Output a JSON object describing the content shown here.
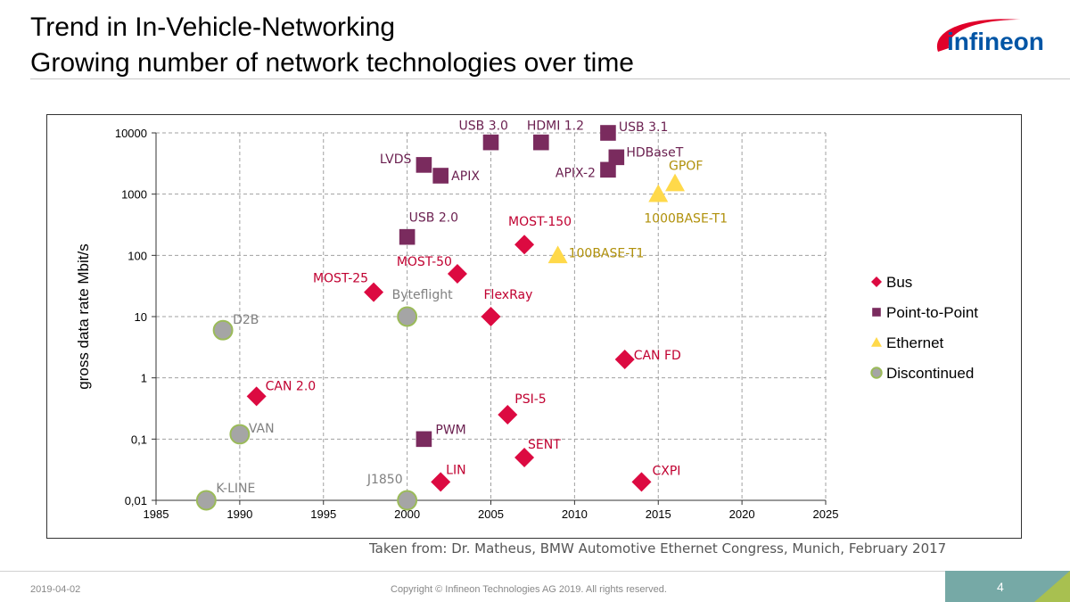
{
  "header": {
    "title_line1": "Trend in In-Vehicle-Networking",
    "title_line2": "Growing number of network technologies over time",
    "logo_text": "infineon"
  },
  "colors": {
    "bus": "#dc0a41",
    "point_to_point": "#7a2b5e",
    "ethernet": "#ffd94a",
    "discontinued": "#a5a5a5",
    "discontinued_edge": "#9bbb59",
    "bus_label": "#c00030",
    "ptp_label": "#6a1f4f",
    "ethernet_label": "#b0900a",
    "discontinued_label": "#808080",
    "footer_teal": "#76a9a6",
    "footer_green": "#a8c050",
    "logo_red": "#e0002a",
    "logo_blue": "#0055a5"
  },
  "chart_data": {
    "type": "scatter",
    "xlim": [
      1985,
      2025
    ],
    "x_ticks": [
      1985,
      1990,
      1995,
      2000,
      2005,
      2010,
      2015,
      2020,
      2025
    ],
    "y_scale": "log",
    "ylim": [
      0.01,
      10000
    ],
    "y_ticks": [
      0.01,
      0.1,
      1,
      10,
      100,
      1000,
      10000
    ],
    "y_tick_labels": [
      "0,01",
      "0,1",
      "1",
      "10",
      "100",
      "1000",
      "10000"
    ],
    "ylabel": "gross data rate Mbit/s",
    "grid": true,
    "legend_position": "right",
    "series": [
      {
        "name": "Bus",
        "marker": "diamond",
        "points": [
          {
            "label": "CAN 2.0",
            "x": 1991,
            "y": 0.5
          },
          {
            "label": "MOST-25",
            "x": 1998,
            "y": 25
          },
          {
            "label": "LIN",
            "x": 2002,
            "y": 0.02
          },
          {
            "label": "MOST-50",
            "x": 2003,
            "y": 50
          },
          {
            "label": "FlexRay",
            "x": 2005,
            "y": 10
          },
          {
            "label": "PSI-5",
            "x": 2006,
            "y": 0.25
          },
          {
            "label": "SENT",
            "x": 2007,
            "y": 0.05
          },
          {
            "label": "MOST-150",
            "x": 2007,
            "y": 150
          },
          {
            "label": "CAN FD",
            "x": 2013,
            "y": 2
          },
          {
            "label": "CXPI",
            "x": 2014,
            "y": 0.02
          }
        ]
      },
      {
        "name": "Point-to-Point",
        "marker": "square",
        "points": [
          {
            "label": "USB 2.0",
            "x": 2000,
            "y": 200
          },
          {
            "label": "LVDS",
            "x": 2001,
            "y": 3000
          },
          {
            "label": "PWM",
            "x": 2001,
            "y": 0.1
          },
          {
            "label": "APIX",
            "x": 2002,
            "y": 2000
          },
          {
            "label": "USB 3.0",
            "x": 2005,
            "y": 7000
          },
          {
            "label": "HDMI 1.2",
            "x": 2008,
            "y": 7000
          },
          {
            "label": "APIX-2",
            "x": 2012,
            "y": 2500
          },
          {
            "label": "USB 3.1",
            "x": 2012,
            "y": 10000
          },
          {
            "label": "HDBaseT",
            "x": 2012.5,
            "y": 4000
          }
        ]
      },
      {
        "name": "Ethernet",
        "marker": "triangle",
        "points": [
          {
            "label": "100BASE-T1",
            "x": 2009,
            "y": 100
          },
          {
            "label": "1000BASE-T1",
            "x": 2015,
            "y": 1000
          },
          {
            "label": "GPOF",
            "x": 2016,
            "y": 1500
          }
        ]
      },
      {
        "name": "Discontinued",
        "marker": "circle",
        "points": [
          {
            "label": "K-LINE",
            "x": 1988,
            "y": 0.01
          },
          {
            "label": "D2B",
            "x": 1989,
            "y": 6
          },
          {
            "label": "VAN",
            "x": 1990,
            "y": 0.12
          },
          {
            "label": "J1850",
            "x": 2000,
            "y": 0.01
          },
          {
            "label": "Byteflight",
            "x": 2000,
            "y": 10
          }
        ]
      }
    ]
  },
  "source_note": "Taken from: Dr. Matheus, BMW Automotive Ethernet Congress, Munich, February 2017",
  "footer": {
    "date": "2019-04-02",
    "copyright": "Copyright © Infineon Technologies AG 2019. All rights reserved.",
    "page_number": "4"
  }
}
